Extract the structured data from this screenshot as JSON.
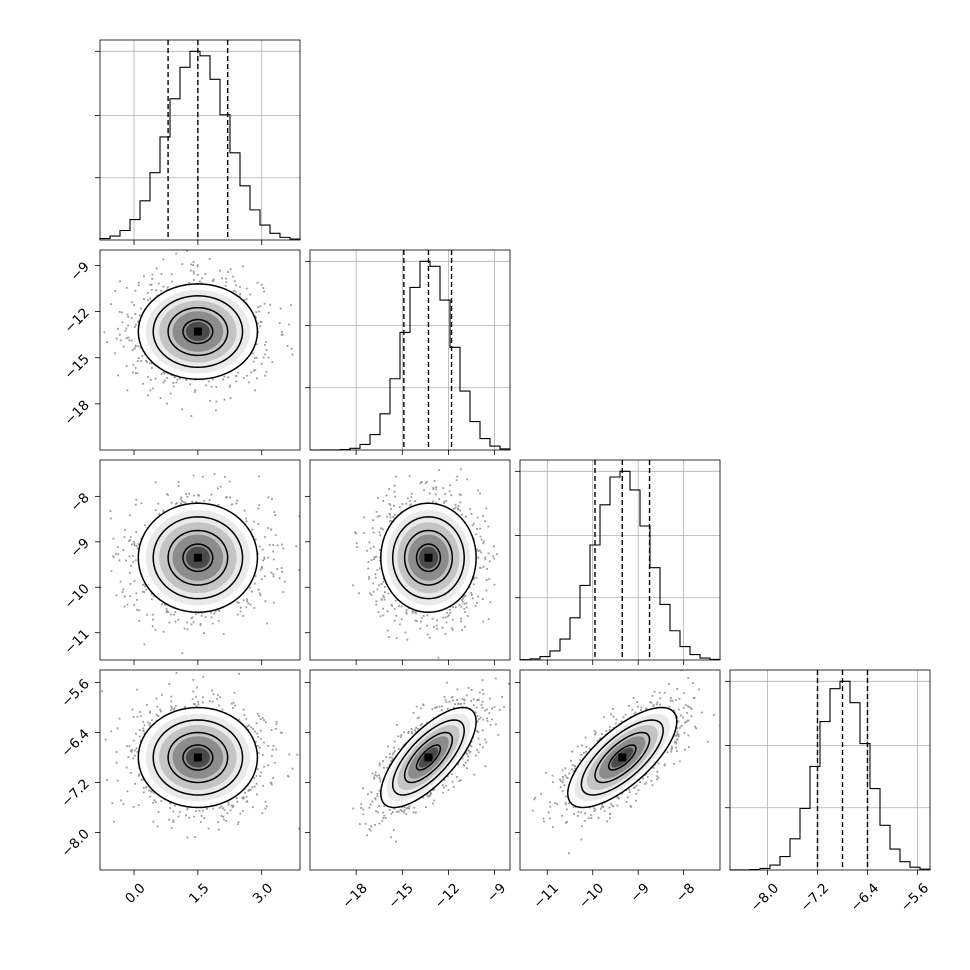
{
  "chart_data": {
    "type": "corner",
    "parameters": [
      {
        "range": [
          -0.8,
          3.9
        ],
        "ticks": [
          0.0,
          1.5,
          3.0
        ],
        "tick_labels": [
          "0.0",
          "1.5",
          "3.0"
        ],
        "quantiles": [
          0.8,
          1.5,
          2.2
        ],
        "mean": 1.5,
        "sd": 0.7
      },
      {
        "range": [
          -21,
          -8
        ],
        "ticks": [
          -18,
          -15,
          -12,
          -9
        ],
        "tick_labels": [
          "−18",
          "−15",
          "−12",
          "−9"
        ],
        "quantiles": [
          -14.9,
          -13.3,
          -11.8
        ],
        "mean": -13.3,
        "sd": 1.55
      },
      {
        "range": [
          -11.6,
          -7.2
        ],
        "ticks": [
          -11,
          -10,
          -9,
          -8
        ],
        "tick_labels": [
          "−11",
          "−10",
          "−9",
          "−8"
        ],
        "quantiles": [
          -9.95,
          -9.35,
          -8.75
        ],
        "mean": -9.35,
        "sd": 0.6
      },
      {
        "range": [
          -8.6,
          -5.4
        ],
        "ticks": [
          -8.0,
          -7.2,
          -6.4,
          -5.6
        ],
        "tick_labels": [
          "−8.0",
          "−7.2",
          "−6.4",
          "−5.6"
        ],
        "quantiles": [
          -7.2,
          -6.8,
          -6.4
        ],
        "mean": -6.8,
        "sd": 0.4
      }
    ],
    "correlations": [
      [
        1.0,
        0.0,
        0.0,
        0.0
      ],
      [
        0.0,
        1.0,
        0.0,
        0.72
      ],
      [
        0.0,
        0.0,
        1.0,
        0.72
      ],
      [
        0.0,
        0.72,
        0.72,
        1.0
      ]
    ],
    "contour_levels_sigma": [
      0.5,
      1.0,
      1.5,
      2.0
    ],
    "grid": true,
    "histogram_bins": 20
  }
}
